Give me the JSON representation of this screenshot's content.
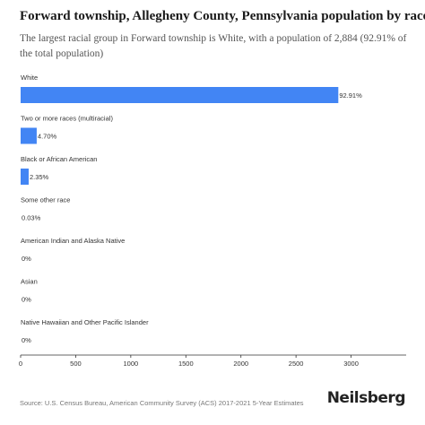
{
  "title": "Forward township, Allegheny County, Pennsylvania population by race",
  "subtitle": "The largest racial group in Forward township is White, with a population of 2,884 (92.91% of the total population)",
  "source": "Source: U.S. Census Bureau, American Community Survey (ACS) 2017-2021 5-Year Estimates",
  "brand": "Neilsberg",
  "colors": {
    "bar": "#4285f4",
    "axis": "#333333",
    "text": "#333333"
  },
  "chart_data": {
    "type": "bar",
    "orientation": "horizontal",
    "categories": [
      "White",
      "Two or more races (multiracial)",
      "Black or African American",
      "Some other race",
      "American Indian and Alaska Native",
      "Asian",
      "Native Hawaiian and Other Pacific Islander"
    ],
    "values": [
      2884,
      146,
      73,
      1,
      0,
      0,
      0
    ],
    "labels": [
      "92.91%",
      "4.70%",
      "2.35%",
      "0.03%",
      "0%",
      "0%",
      "0%"
    ],
    "xticks": [
      0,
      500,
      1000,
      1500,
      2000,
      2500,
      3000
    ],
    "xlim": [
      0,
      3500
    ],
    "grid": false
  }
}
